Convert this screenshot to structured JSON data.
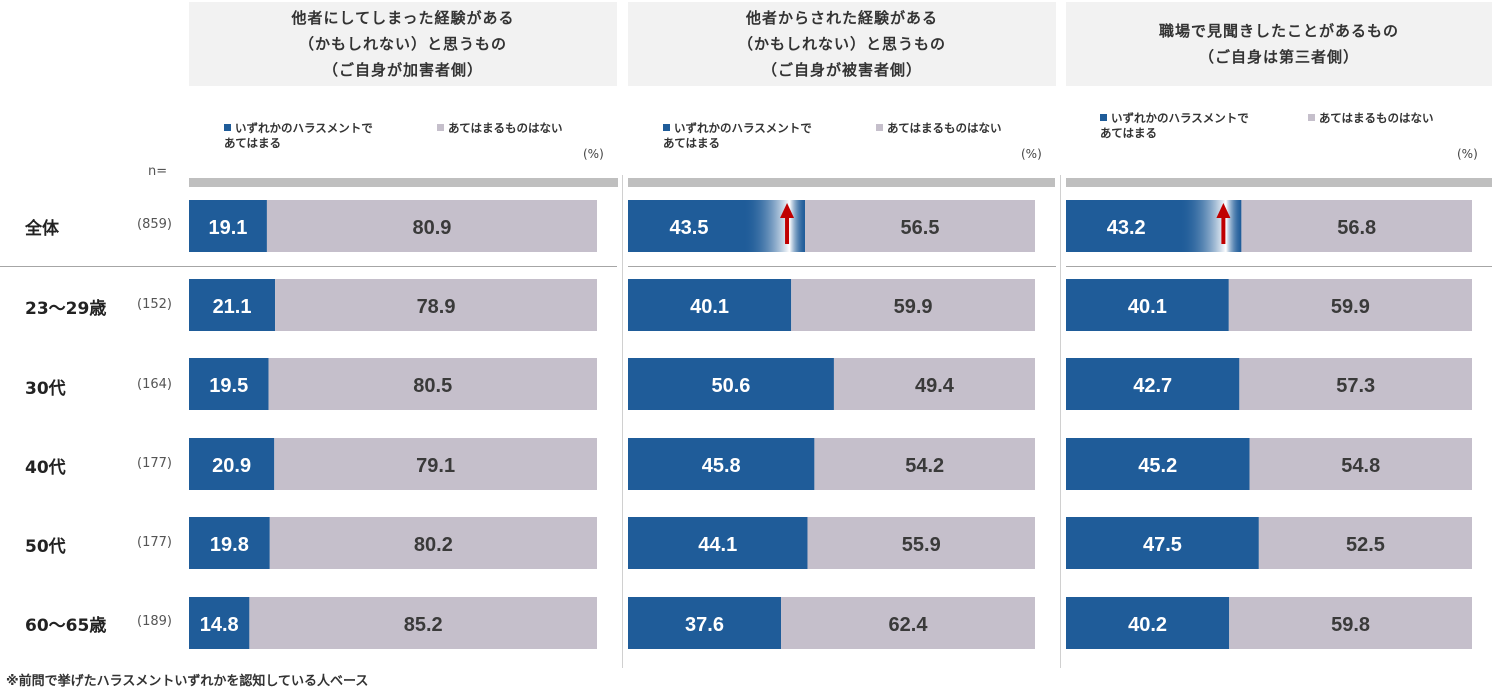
{
  "chart_data": {
    "type": "stacked-bar",
    "unit": "(%)",
    "n_label": "n=",
    "rows": [
      {
        "label": "全体",
        "n": "(859)"
      },
      {
        "label": "23〜29歳",
        "n": "(152)"
      },
      {
        "label": "30代",
        "n": "(164)"
      },
      {
        "label": "40代",
        "n": "(177)"
      },
      {
        "label": "50代",
        "n": "(177)"
      },
      {
        "label": "60〜65歳",
        "n": "(189)"
      }
    ],
    "legend": {
      "series1_line1": "いずれかのハラスメントで",
      "series1_line2": "あてはまる",
      "series2": "あてはまるものはない"
    },
    "panels": [
      {
        "title_lines": [
          "他者にしてしまった経験がある",
          "（かもしれない）と思うもの",
          "（ご自身が加害者側）"
        ],
        "series": [
          {
            "name": "いずれかのハラスメントであてはまる",
            "values": [
              19.1,
              21.1,
              19.5,
              20.9,
              19.8,
              14.8
            ]
          },
          {
            "name": "あてはまるものはない",
            "values": [
              80.9,
              78.9,
              80.5,
              79.1,
              80.2,
              85.2
            ]
          }
        ],
        "labels_s1": [
          "19.1",
          "21.1",
          "19.5",
          "20.9",
          "19.8",
          "14.8"
        ],
        "labels_s2": [
          "80.9",
          "78.9",
          "80.5",
          "79.1",
          "80.2",
          "85.2"
        ],
        "highlight_total": false
      },
      {
        "title_lines": [
          "他者からされた経験がある",
          "（かもしれない）と思うもの",
          "（ご自身が被害者側）"
        ],
        "series": [
          {
            "name": "いずれかのハラスメントであてはまる",
            "values": [
              43.5,
              40.1,
              50.6,
              45.8,
              44.1,
              37.6
            ]
          },
          {
            "name": "あてはまるものはない",
            "values": [
              56.5,
              59.9,
              49.4,
              54.2,
              55.9,
              62.4
            ]
          }
        ],
        "labels_s1": [
          "43.5",
          "40.1",
          "50.6",
          "45.8",
          "44.1",
          "37.6"
        ],
        "labels_s2": [
          "56.5",
          "59.9",
          "49.4",
          "54.2",
          "55.9",
          "62.4"
        ],
        "highlight_total": true
      },
      {
        "title_lines": [
          "職場で見聞きしたことがあるもの",
          "（ご自身は第三者側）"
        ],
        "series": [
          {
            "name": "いずれかのハラスメントであてはまる",
            "values": [
              43.2,
              40.1,
              42.7,
              45.2,
              47.5,
              40.2
            ]
          },
          {
            "name": "あてはまるものはない",
            "values": [
              56.8,
              59.9,
              57.3,
              54.8,
              52.5,
              59.8
            ]
          }
        ],
        "labels_s1": [
          "43.2",
          "40.1",
          "42.7",
          "45.2",
          "47.5",
          "40.2"
        ],
        "labels_s2": [
          "56.8",
          "59.9",
          "57.3",
          "54.8",
          "52.5",
          "59.8"
        ],
        "highlight_total": true
      }
    ],
    "footnote": "※前問で挙げたハラスメントいずれかを認知している人ベース"
  },
  "colors": {
    "series1": "#1f5c99",
    "series2": "#c5bfcb",
    "header_bg": "#f2f2f2",
    "band": "#bfbfbf",
    "arrow": "#c00000"
  }
}
